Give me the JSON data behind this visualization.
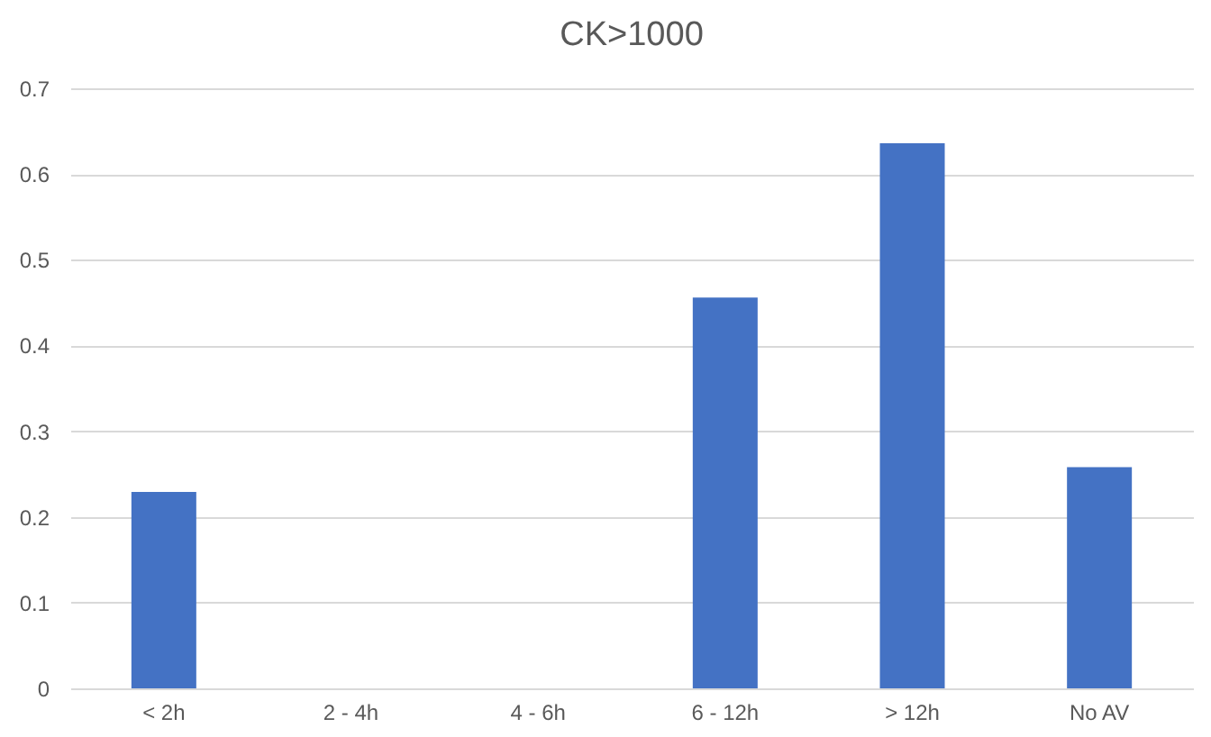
{
  "chart_data": {
    "type": "bar",
    "title": "CK>1000",
    "categories": [
      "< 2h",
      "2 - 4h",
      "4 - 6h",
      "6 - 12h",
      "> 12h",
      "No AV"
    ],
    "values": [
      0.229,
      0,
      0,
      0.456,
      0.636,
      0.258
    ],
    "color": "#4472c4",
    "ylim": [
      0,
      0.7
    ],
    "yticks": [
      0,
      0.1,
      0.2,
      0.3,
      0.4,
      0.5,
      0.6,
      0.7
    ],
    "grid": "y"
  }
}
